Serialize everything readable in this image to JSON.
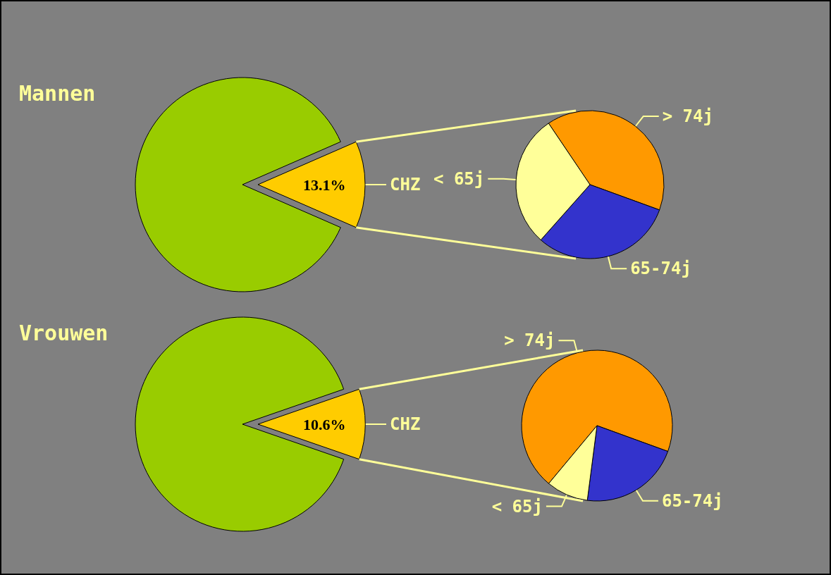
{
  "chart_data": [
    {
      "type": "pie",
      "title": "Mannen",
      "categories": [
        "CHZ",
        null
      ],
      "values": [
        13.1,
        86.9
      ],
      "colors": [
        "#ffcc00",
        "#99cc00"
      ],
      "value_labels": [
        "13.1%",
        null
      ]
    },
    {
      "type": "pie",
      "categories": [
        "> 74j",
        "65-74j",
        "< 65j"
      ],
      "values": [
        40,
        31,
        29
      ],
      "colors": [
        "#ff9900",
        "#3333cc",
        "#ffff99"
      ]
    },
    {
      "type": "pie",
      "title": "Vrouwen",
      "categories": [
        "CHZ",
        null
      ],
      "values": [
        10.6,
        89.4
      ],
      "colors": [
        "#ffcc00",
        "#99cc00"
      ],
      "value_labels": [
        "10.6%",
        null
      ]
    },
    {
      "type": "pie",
      "categories": [
        "> 74j",
        "65-74j",
        "< 65j"
      ],
      "values": [
        69.5,
        21.5,
        9
      ],
      "colors": [
        "#ff9900",
        "#3333cc",
        "#ffff99"
      ]
    }
  ]
}
